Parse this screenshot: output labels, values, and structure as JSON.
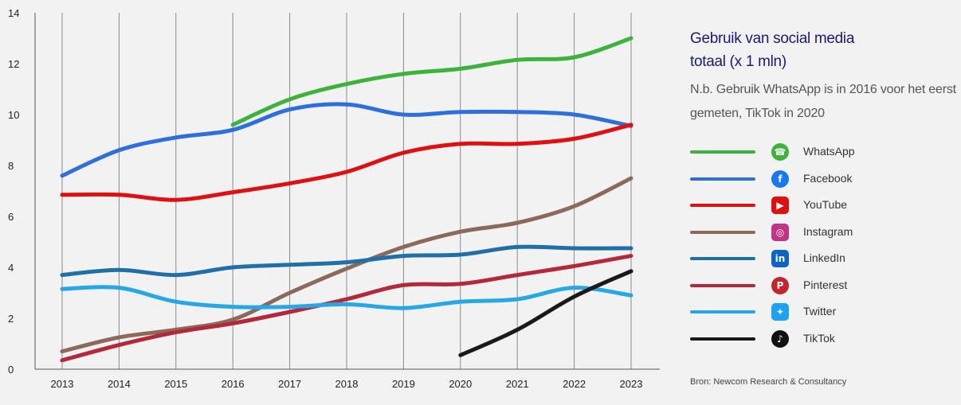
{
  "title": {
    "line1": "Gebruik van social media",
    "line2": "totaal (x 1 mln)"
  },
  "note": "N.b. Gebruik WhatsApp is in 2016 voor het eerst gemeten, TikTok in 2020",
  "source": "Bron: Newcom Research & Consultancy",
  "icons": {
    "whatsapp": "whatsapp-icon",
    "facebook": "facebook-icon",
    "youtube": "youtube-icon",
    "instagram": "instagram-icon",
    "linkedin": "linkedin-icon",
    "pinterest": "pinterest-icon",
    "twitter": "twitter-icon",
    "tiktok": "tiktok-icon"
  },
  "chart_data": {
    "type": "line",
    "title": "Gebruik van social media totaal (x 1 mln)",
    "xlabel": "",
    "ylabel": "",
    "ylim": [
      0,
      14
    ],
    "y_ticks": [
      0,
      2,
      4,
      6,
      8,
      10,
      12,
      14
    ],
    "x": [
      2013,
      2014,
      2015,
      2016,
      2017,
      2018,
      2019,
      2020,
      2021,
      2022,
      2023
    ],
    "grid": "vertical",
    "legend": "right",
    "series": [
      {
        "name": "WhatsApp",
        "key": "whatsapp",
        "color": "#3cb43c",
        "values": [
          null,
          null,
          null,
          9.6,
          10.6,
          11.2,
          11.6,
          11.8,
          12.15,
          12.25,
          13.0
        ]
      },
      {
        "name": "Facebook",
        "key": "facebook",
        "color": "#2e6fe0",
        "values": [
          7.6,
          8.6,
          9.1,
          9.4,
          10.2,
          10.4,
          10.0,
          10.1,
          10.1,
          10.0,
          9.55
        ]
      },
      {
        "name": "YouTube",
        "key": "youtube",
        "color": "#e01010",
        "values": [
          6.85,
          6.85,
          6.65,
          6.95,
          7.3,
          7.75,
          8.5,
          8.85,
          8.85,
          9.05,
          9.6
        ]
      },
      {
        "name": "Instagram",
        "key": "instagram",
        "color": "#8b6a5c",
        "values": [
          0.7,
          1.25,
          1.55,
          1.95,
          3.0,
          3.95,
          4.8,
          5.4,
          5.75,
          6.4,
          7.5
        ]
      },
      {
        "name": "LinkedIn",
        "key": "linkedin",
        "color": "#1f6fa8",
        "values": [
          3.7,
          3.9,
          3.7,
          4.0,
          4.1,
          4.2,
          4.45,
          4.5,
          4.8,
          4.75,
          4.75
        ]
      },
      {
        "name": "Pinterest",
        "key": "pinterest",
        "color": "#b5283a",
        "values": [
          0.35,
          0.95,
          1.45,
          1.8,
          2.25,
          2.75,
          3.3,
          3.35,
          3.7,
          4.05,
          4.45
        ]
      },
      {
        "name": "Twitter",
        "key": "twitter",
        "color": "#25a8e6",
        "values": [
          3.15,
          3.2,
          2.65,
          2.45,
          2.45,
          2.55,
          2.4,
          2.65,
          2.75,
          3.2,
          2.9
        ]
      },
      {
        "name": "TikTok",
        "key": "tiktok",
        "color": "#1a1a1a",
        "values": [
          null,
          null,
          null,
          null,
          null,
          null,
          null,
          0.55,
          1.55,
          2.85,
          3.85
        ]
      }
    ]
  }
}
